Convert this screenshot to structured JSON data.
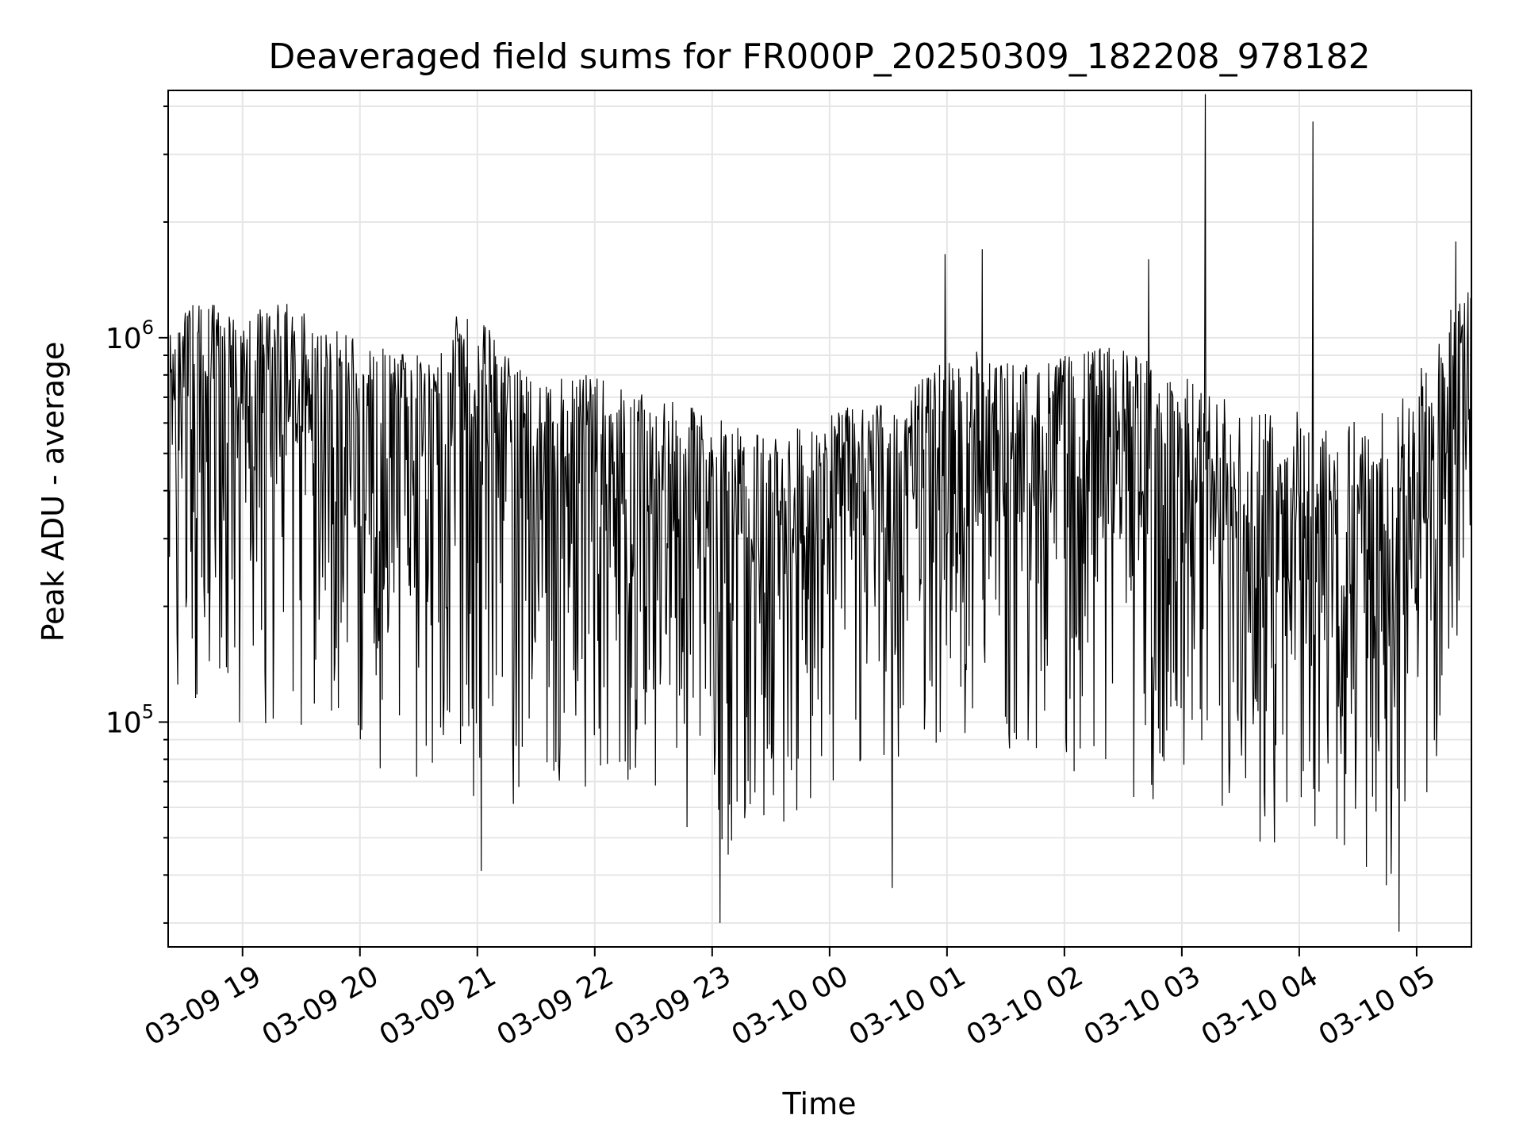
{
  "chart_data": {
    "type": "line",
    "title": "Deaveraged field sums for FR000P_20250309_182208_978182",
    "xlabel": "Time",
    "ylabel": "Peak ADU - average",
    "xlim": [
      "2025-03-09 18:22",
      "2025-03-10 05:28"
    ],
    "yscale": "log",
    "ylim": [
      26000,
      4400000
    ],
    "y_major_ticks": [
      {
        "value": 100000,
        "base": "10",
        "exp": "5"
      },
      {
        "value": 1000000,
        "base": "10",
        "exp": "6"
      }
    ],
    "x_ticks": [
      {
        "time": "2025-03-09 19:00",
        "label": "03-09 19"
      },
      {
        "time": "2025-03-09 20:00",
        "label": "03-09 20"
      },
      {
        "time": "2025-03-09 21:00",
        "label": "03-09 21"
      },
      {
        "time": "2025-03-09 22:00",
        "label": "03-09 22"
      },
      {
        "time": "2025-03-09 23:00",
        "label": "03-09 23"
      },
      {
        "time": "2025-03-10 00:00",
        "label": "03-10 00"
      },
      {
        "time": "2025-03-10 01:00",
        "label": "03-10 01"
      },
      {
        "time": "2025-03-10 02:00",
        "label": "03-10 02"
      },
      {
        "time": "2025-03-10 03:00",
        "label": "03-10 03"
      },
      {
        "time": "2025-03-10 04:00",
        "label": "03-10 04"
      },
      {
        "time": "2025-03-10 05:00",
        "label": "03-10 05"
      }
    ],
    "grid": true,
    "line_color": "#000000",
    "grid_color": "#e6e6e6",
    "series": [
      {
        "x": [
          "2025-03-09 18:22",
          "2025-03-09 18:30",
          "2025-03-09 18:40",
          "2025-03-09 18:50",
          "2025-03-09 19:00",
          "2025-03-09 19:10",
          "2025-03-09 19:20",
          "2025-03-09 19:30",
          "2025-03-09 19:40",
          "2025-03-09 19:50",
          "2025-03-09 20:00",
          "2025-03-09 20:10",
          "2025-03-09 20:20",
          "2025-03-09 20:30",
          "2025-03-09 20:40",
          "2025-03-09 20:50",
          "2025-03-09 21:00",
          "2025-03-09 21:10",
          "2025-03-09 21:20",
          "2025-03-09 21:30",
          "2025-03-09 21:40",
          "2025-03-09 21:50",
          "2025-03-09 22:00",
          "2025-03-09 22:10",
          "2025-03-09 22:20",
          "2025-03-09 22:30",
          "2025-03-09 22:40",
          "2025-03-09 22:50",
          "2025-03-09 23:00",
          "2025-03-09 23:10",
          "2025-03-09 23:20",
          "2025-03-09 23:30",
          "2025-03-09 23:40",
          "2025-03-09 23:50",
          "2025-03-10 00:00",
          "2025-03-10 00:10",
          "2025-03-10 00:20",
          "2025-03-10 00:30",
          "2025-03-10 00:40",
          "2025-03-10 00:50",
          "2025-03-10 01:00",
          "2025-03-10 01:10",
          "2025-03-10 01:20",
          "2025-03-10 01:30",
          "2025-03-10 01:40",
          "2025-03-10 01:50",
          "2025-03-10 02:00",
          "2025-03-10 02:10",
          "2025-03-10 02:20",
          "2025-03-10 02:30",
          "2025-03-10 02:40",
          "2025-03-10 02:50",
          "2025-03-10 03:00",
          "2025-03-10 03:10",
          "2025-03-10 03:20",
          "2025-03-10 03:30",
          "2025-03-10 03:40",
          "2025-03-10 03:50",
          "2025-03-10 04:00",
          "2025-03-10 04:10",
          "2025-03-10 04:20",
          "2025-03-10 04:30",
          "2025-03-10 04:40",
          "2025-03-10 04:50",
          "2025-03-10 05:00",
          "2025-03-10 05:10",
          "2025-03-10 05:20",
          "2025-03-10 05:28"
        ],
        "median": [
          550000,
          600000,
          620000,
          600000,
          580000,
          620000,
          640000,
          600000,
          560000,
          540000,
          520000,
          500000,
          480000,
          500000,
          540000,
          580000,
          580000,
          520000,
          440000,
          400000,
          410000,
          420000,
          420000,
          400000,
          380000,
          370000,
          360000,
          350000,
          330000,
          320000,
          310000,
          300000,
          310000,
          330000,
          350000,
          360000,
          360000,
          380000,
          400000,
          420000,
          450000,
          450000,
          430000,
          420000,
          420000,
          430000,
          430000,
          440000,
          440000,
          420000,
          400000,
          380000,
          340000,
          300000,
          260000,
          250000,
          240000,
          240000,
          240000,
          230000,
          230000,
          230000,
          240000,
          260000,
          320000,
          430000,
          600000,
          700000
        ],
        "upper": [
          1000000,
          1200000,
          1250000,
          1200000,
          1150000,
          1200000,
          1250000,
          1200000,
          1100000,
          1050000,
          1000000,
          950000,
          900000,
          950000,
          1050000,
          1150000,
          1150000,
          1000000,
          850000,
          780000,
          780000,
          800000,
          800000,
          760000,
          720000,
          700000,
          680000,
          660000,
          630000,
          600000,
          580000,
          560000,
          570000,
          600000,
          640000,
          660000,
          660000,
          700000,
          750000,
          800000,
          900000,
          950000,
          900000,
          880000,
          860000,
          880000,
          900000,
          920000,
          950000,
          950000,
          900000,
          860000,
          800000,
          750000,
          700000,
          680000,
          660000,
          650000,
          650000,
          640000,
          630000,
          620000,
          640000,
          680000,
          800000,
          1000000,
          1250000,
          1400000
        ],
        "lower": [
          120000,
          110000,
          100000,
          95000,
          90000,
          95000,
          100000,
          95000,
          85000,
          80000,
          80000,
          75000,
          70000,
          65000,
          60000,
          60000,
          65000,
          60000,
          60000,
          62000,
          64000,
          65000,
          70000,
          68000,
          62000,
          60000,
          55000,
          52000,
          45000,
          44000,
          45000,
          50000,
          55000,
          60000,
          65000,
          70000,
          75000,
          80000,
          80000,
          82000,
          90000,
          90000,
          85000,
          80000,
          78000,
          76000,
          75000,
          72000,
          70000,
          65000,
          60000,
          55000,
          50000,
          45000,
          40000,
          42000,
          45000,
          48000,
          50000,
          48000,
          45000,
          42000,
          38000,
          35000,
          45000,
          70000,
          110000,
          150000
        ]
      }
    ],
    "spikes": [
      {
        "time": "2025-03-10 03:12",
        "value": 4300000
      },
      {
        "time": "2025-03-10 04:07",
        "value": 3650000
      },
      {
        "time": "2025-03-10 00:59",
        "value": 1650000
      },
      {
        "time": "2025-03-10 01:18",
        "value": 1700000
      },
      {
        "time": "2025-03-10 02:43",
        "value": 1600000
      },
      {
        "time": "2025-03-10 05:20",
        "value": 1780000
      },
      {
        "time": "2025-03-09 23:04",
        "value": 30000
      },
      {
        "time": "2025-03-10 04:51",
        "value": 28500
      },
      {
        "time": "2025-03-10 00:32",
        "value": 37000
      },
      {
        "time": "2025-03-09 21:02",
        "value": 41000
      }
    ]
  }
}
